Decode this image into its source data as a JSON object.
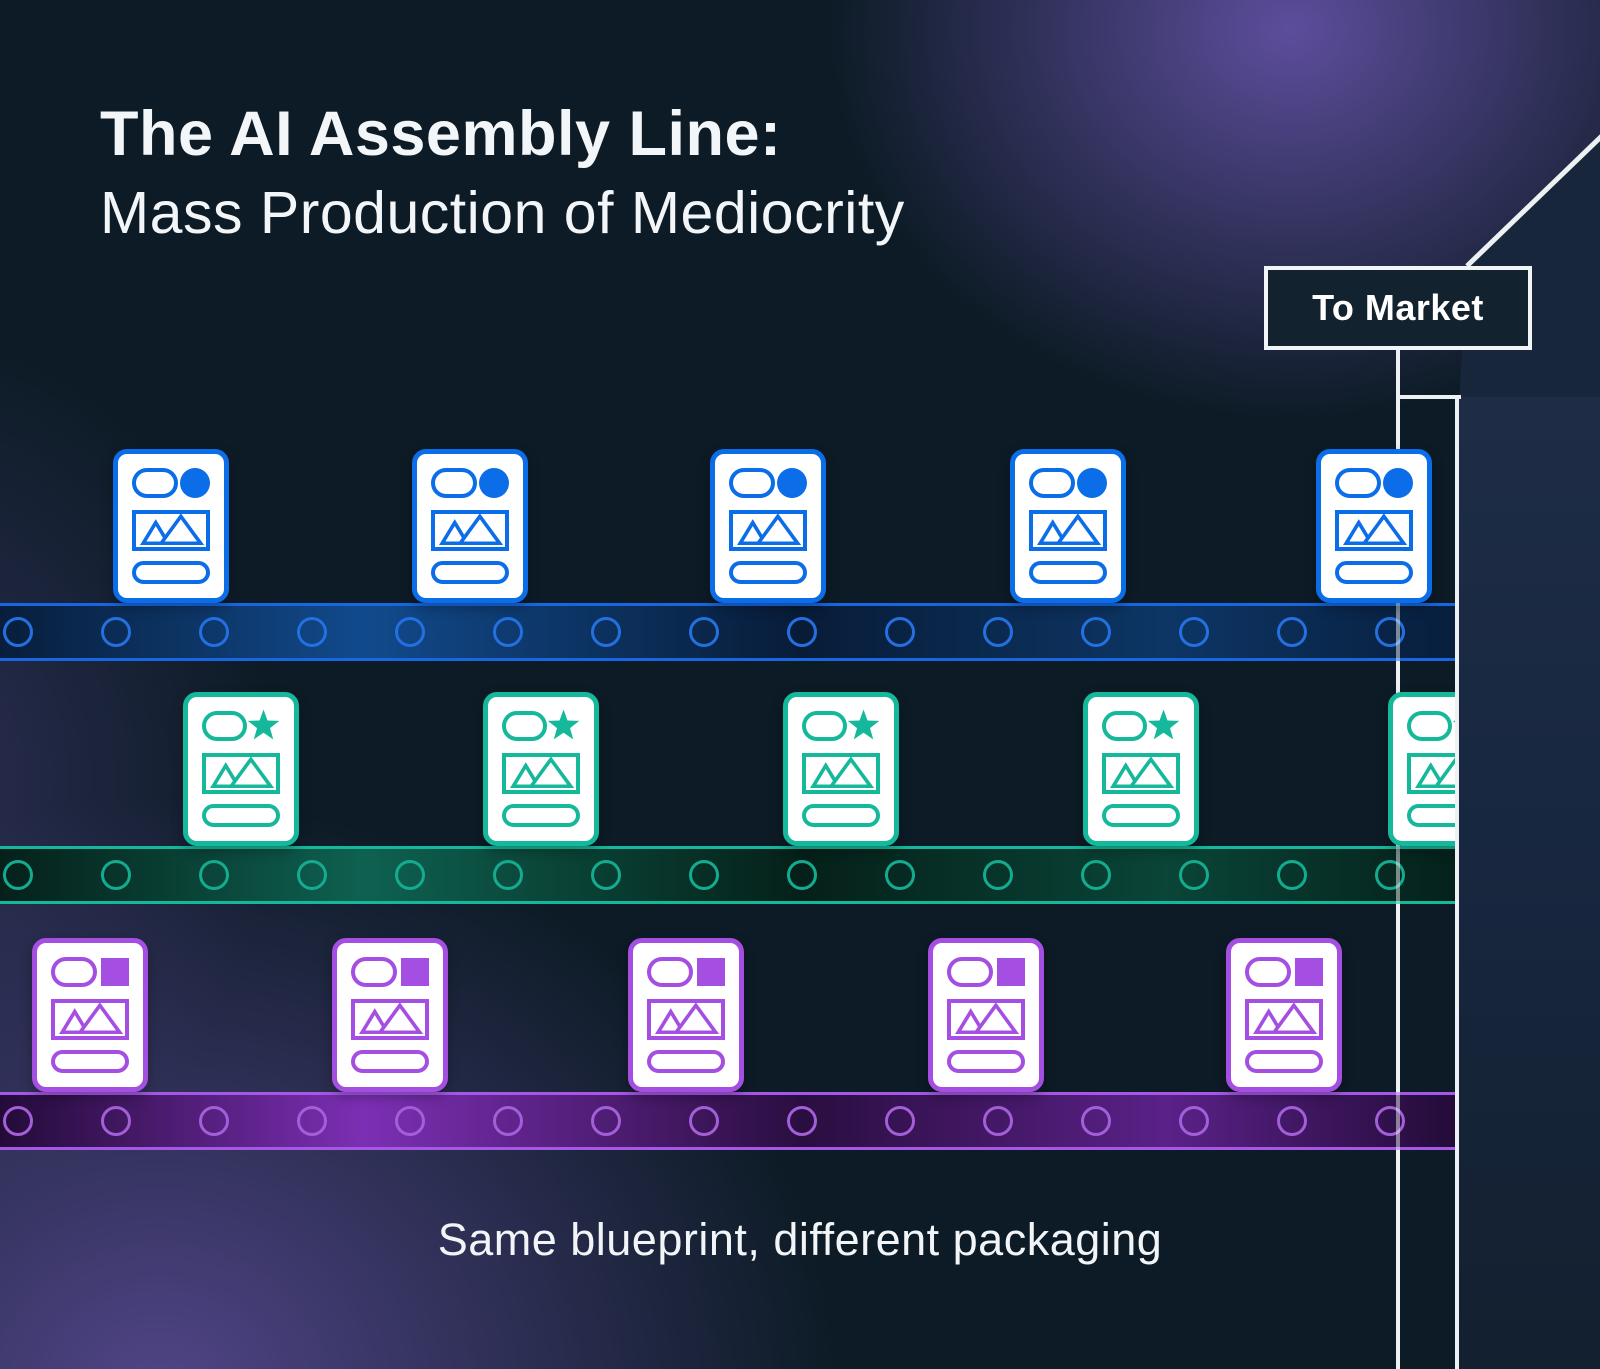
{
  "header": {
    "title_line1": "The AI Assembly Line:",
    "title_line2": "Mass Production of Mediocrity"
  },
  "to_market": {
    "label": "To Market"
  },
  "caption": "Same blueprint, different packaging",
  "assembly_lines": [
    {
      "id": "blue-line",
      "product_icon": "circle-icon",
      "accent": "#0b6de8",
      "belt_edge": "#1767e2",
      "roller": "#2470e0",
      "belt_gradient": [
        "#081e3c",
        "#114a8c",
        "#081c38",
        "#0d3666"
      ],
      "card_count": 5
    },
    {
      "id": "teal-line",
      "product_icon": "star-icon",
      "accent": "#15b89b",
      "belt_edge": "#15b89b",
      "roller": "#14ac90",
      "belt_gradient": [
        "#05201a",
        "#0e6150",
        "#052019",
        "#0a4538"
      ],
      "card_count": 5
    },
    {
      "id": "purple-line",
      "product_icon": "square-icon",
      "accent": "#a44ee2",
      "belt_edge": "#a558e6",
      "roller": "#a35fd8",
      "belt_gradient": [
        "#230b38",
        "#7c2fb4",
        "#2a0e40",
        "#5a2188"
      ],
      "card_count": 5
    }
  ],
  "colors": {
    "background": "#0d1b26",
    "glow": "#564a92",
    "structure_line": "#eef1f4",
    "sign_panel": "#13222f"
  }
}
